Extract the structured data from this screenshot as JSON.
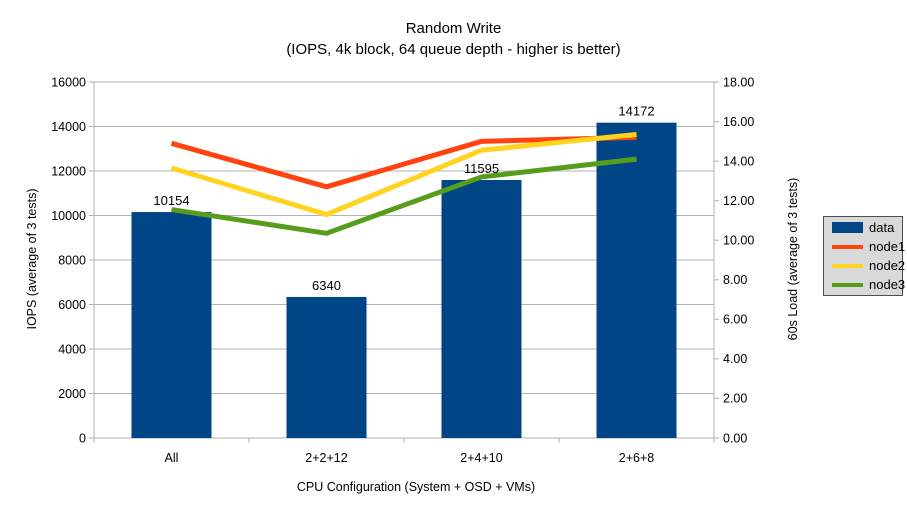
{
  "page": {
    "background": "#ffffff"
  },
  "chart_data": {
    "type": "bar",
    "title": "Random Write",
    "subtitle": "(IOPS, 4k block, 64 queue depth - higher is better)",
    "categories": [
      "All",
      "2+2+12",
      "2+4+10",
      "2+6+8"
    ],
    "bar_series": {
      "name": "data",
      "color": "#004586",
      "axis": "left",
      "values": [
        10154,
        6340,
        11595,
        14172
      ],
      "value_labels": [
        "10154",
        "6340",
        "11595",
        "14172"
      ]
    },
    "line_series": [
      {
        "name": "node1",
        "color": "#ff420e",
        "axis": "right",
        "values": [
          14.9,
          12.7,
          15.0,
          15.2
        ]
      },
      {
        "name": "node2",
        "color": "#ffd320",
        "axis": "right",
        "values": [
          13.65,
          11.3,
          14.55,
          15.35
        ]
      },
      {
        "name": "node3",
        "color": "#579d1c",
        "axis": "right",
        "values": [
          11.55,
          10.35,
          13.2,
          14.1
        ]
      }
    ],
    "left_axis": {
      "title": "IOPS (average of 3 tests)",
      "min": 0,
      "max": 16000,
      "step": 2000,
      "tick_labels": [
        "0",
        "2000",
        "4000",
        "6000",
        "8000",
        "10000",
        "12000",
        "14000",
        "16000"
      ]
    },
    "right_axis": {
      "title": "60s Load (average of 3 tests)",
      "min": 0,
      "max": 18,
      "step": 2,
      "tick_labels": [
        "0.00",
        "2.00",
        "4.00",
        "6.00",
        "8.00",
        "10.00",
        "12.00",
        "14.00",
        "16.00",
        "18.00"
      ]
    },
    "x_axis": {
      "title": "CPU Configuration (System + OSD + VMs)"
    },
    "legend": {
      "position": "right",
      "background": "#d9d9d9",
      "entries": [
        {
          "label": "data",
          "color": "#004586",
          "marker": "bar"
        },
        {
          "label": "node1",
          "color": "#ff420e",
          "marker": "line"
        },
        {
          "label": "node2",
          "color": "#ffd320",
          "marker": "line"
        },
        {
          "label": "node3",
          "color": "#579d1c",
          "marker": "line"
        }
      ]
    },
    "grid": {
      "horizontal": true,
      "color": "#b3b3b3"
    },
    "axis_color": "#b3b3b3"
  }
}
